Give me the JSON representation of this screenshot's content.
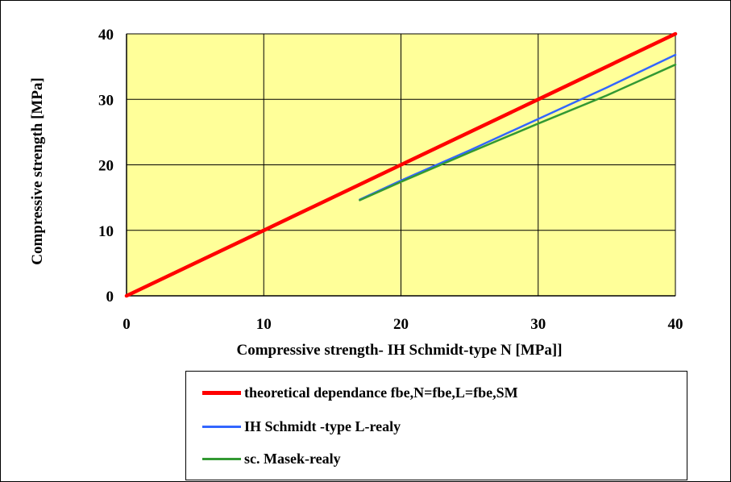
{
  "chart_data": {
    "type": "line",
    "title": "",
    "xlabel": "Compressive strength- IH Schmidt-type N [MPa]]",
    "ylabel": "Compressive strength [MPa]",
    "xlim": [
      0,
      40
    ],
    "ylim": [
      0,
      40
    ],
    "xticks": [
      "0",
      "10",
      "20",
      "30",
      "40"
    ],
    "yticks": [
      "0",
      "10",
      "20",
      "30",
      "40"
    ],
    "grid": true,
    "legend_position": "bottom",
    "plot_background": "#ffff99",
    "series": [
      {
        "name": "theoretical dependance fbe,N=fbe,L=fbe,SM",
        "color": "#ff0000",
        "x": [
          0,
          10,
          20,
          30,
          40
        ],
        "y": [
          0,
          10,
          20,
          30,
          40
        ]
      },
      {
        "name": "IH Schmidt -type L-realy",
        "color": "#3366ff",
        "x": [
          17,
          20,
          25,
          30,
          35,
          40
        ],
        "y": [
          14.7,
          17.6,
          22.2,
          27.0,
          31.8,
          36.8
        ]
      },
      {
        "name": "sc. Masek-realy",
        "color": "#339933",
        "x": [
          17,
          20,
          25,
          30,
          35,
          40
        ],
        "y": [
          14.6,
          17.4,
          21.9,
          26.3,
          30.6,
          35.3
        ]
      }
    ]
  }
}
